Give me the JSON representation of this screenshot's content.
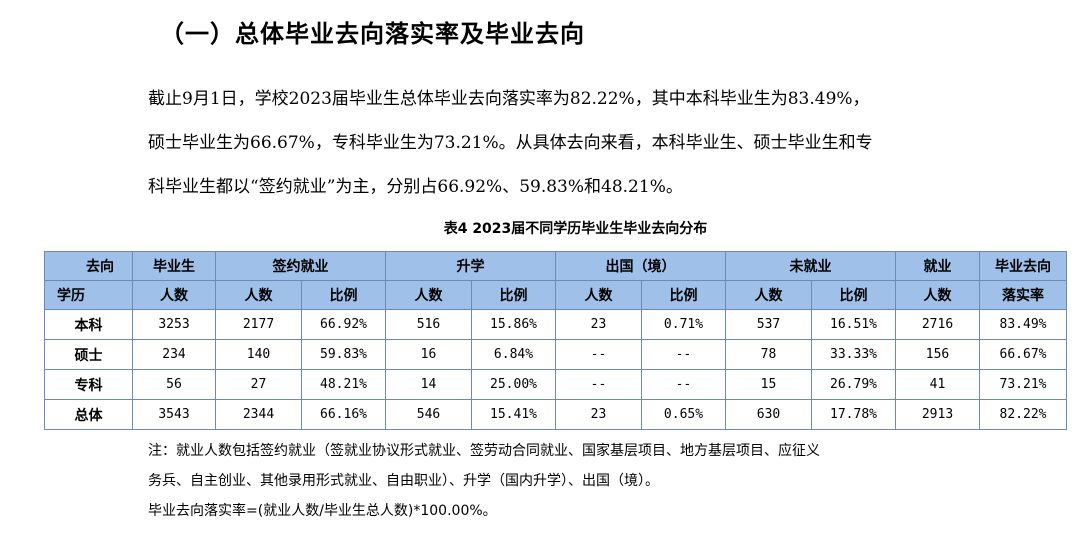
{
  "heading": "（一）总体毕业去向落实率及毕业去向",
  "paragraph": {
    "line1": "截止9月1日，学校2023届毕业生总体毕业去向落实率为82.22%，其中本科毕业生为83.49%，",
    "line2": "硕士毕业生为66.67%，专科毕业生为73.21%。从具体去向来看，本科毕业生、硕士毕业生和专",
    "line3": "科毕业生都以“签约就业”为主，分别占66.92%、59.83%和48.21%。"
  },
  "table": {
    "caption": "表4 2023届不同学历毕业生毕业去向分布",
    "header": {
      "corner_top": "去向",
      "corner_bottom": "学历",
      "graduates_top": "毕业生",
      "graduates_bottom": "人数",
      "group_signed": "签约就业",
      "group_further": "升学",
      "group_abroad": "出国（境）",
      "group_unemployed": "未就业",
      "employed_top": "就业",
      "employed_bottom": "人数",
      "rate_top": "毕业去向",
      "rate_bottom": "落实率",
      "count": "人数",
      "ratio": "比例"
    },
    "rows": [
      {
        "level": "本科",
        "grads": "3253",
        "signed_n": "2177",
        "signed_p": "66.92%",
        "further_n": "516",
        "further_p": "15.86%",
        "abroad_n": "23",
        "abroad_p": "0.71%",
        "unemp_n": "537",
        "unemp_p": "16.51%",
        "employed": "2716",
        "rate": "83.49%"
      },
      {
        "level": "硕士",
        "grads": "234",
        "signed_n": "140",
        "signed_p": "59.83%",
        "further_n": "16",
        "further_p": "6.84%",
        "abroad_n": "--",
        "abroad_p": "--",
        "unemp_n": "78",
        "unemp_p": "33.33%",
        "employed": "156",
        "rate": "66.67%"
      },
      {
        "level": "专科",
        "grads": "56",
        "signed_n": "27",
        "signed_p": "48.21%",
        "further_n": "14",
        "further_p": "25.00%",
        "abroad_n": "--",
        "abroad_p": "--",
        "unemp_n": "15",
        "unemp_p": "26.79%",
        "employed": "41",
        "rate": "73.21%"
      },
      {
        "level": "总体",
        "grads": "3543",
        "signed_n": "2344",
        "signed_p": "66.16%",
        "further_n": "546",
        "further_p": "15.41%",
        "abroad_n": "23",
        "abroad_p": "0.65%",
        "unemp_n": "630",
        "unemp_p": "17.78%",
        "employed": "2913",
        "rate": "82.22%"
      }
    ]
  },
  "notes": {
    "line1": "注：就业人数包括签约就业（签就业协议形式就业、签劳动合同就业、国家基层项目、地方基层项目、应征义",
    "line2": "务兵、自主创业、其他录用形式就业、自由职业）、升学（国内升学）、出国（境）。",
    "line3": "毕业去向落实率=(就业人数/毕业生总人数)*100.00%。"
  },
  "colors": {
    "header_bg": "#9fc0e8",
    "border": "#6a8ab8"
  }
}
